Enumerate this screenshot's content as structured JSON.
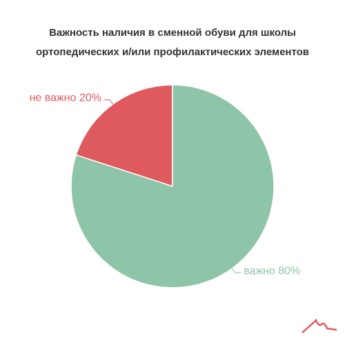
{
  "chart_data": {
    "type": "pie",
    "title": [
      "Важность наличия в сменной обуви для школы",
      "ортопедических и/или профилактических элементов"
    ],
    "categories": [
      "не важно",
      "важно"
    ],
    "values": [
      20,
      80
    ],
    "value_labels": [
      "20%",
      "80%"
    ],
    "colors": [
      "#df5a5e",
      "#8ec4a7"
    ]
  }
}
